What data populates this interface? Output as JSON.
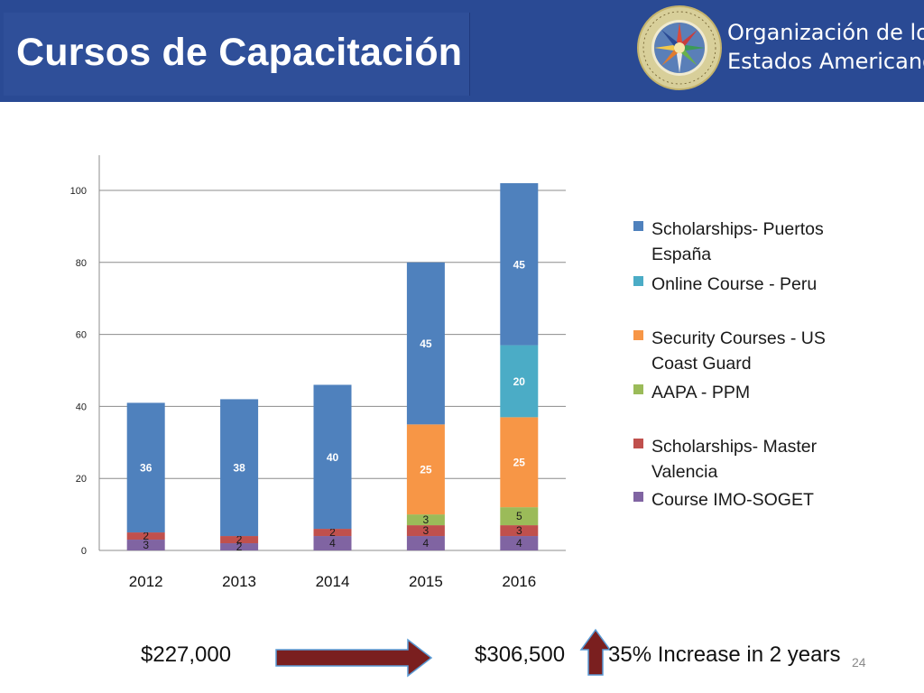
{
  "header": {
    "title": "Cursos de Capacitación",
    "org_line1": "Organización de los",
    "org_line2": "Estados Americanos",
    "logo_text": "ORGANIZACIÓN DE LOS ESTADOS AMERICANOS",
    "bg_color": "#2a4a94"
  },
  "chart_data": {
    "type": "bar",
    "stacked": true,
    "categories": [
      "2012",
      "2013",
      "2014",
      "2015",
      "2016"
    ],
    "series": [
      {
        "name": "Course IMO-SOGET",
        "color": "#8064a2",
        "values": [
          3,
          2,
          4,
          4,
          4
        ]
      },
      {
        "name": "Scholarships- Master Valencia",
        "color": "#c0504d",
        "values": [
          2,
          2,
          2,
          3,
          3
        ]
      },
      {
        "name": "AAPA - PPM",
        "color": "#9bbb59",
        "values": [
          0,
          0,
          0,
          3,
          5
        ]
      },
      {
        "name": "Security Courses - US Coast Guard",
        "color": "#f79646",
        "values": [
          0,
          0,
          0,
          25,
          25
        ]
      },
      {
        "name": "Online Course - Peru",
        "color": "#4bacc6",
        "values": [
          0,
          0,
          0,
          0,
          20
        ]
      },
      {
        "name": "Scholarships- Puertos España",
        "color": "#4f81bd",
        "values": [
          36,
          38,
          40,
          45,
          45
        ]
      }
    ],
    "yticks": [
      0,
      20,
      40,
      60,
      80,
      100
    ],
    "ylim": [
      0,
      110
    ],
    "grid": true,
    "legend_position": "right"
  },
  "legend": {
    "items": [
      {
        "label": "Scholarships- Puertos España",
        "color": "#4f81bd"
      },
      {
        "label": "Online Course - Peru",
        "color": "#4bacc6"
      },
      {
        "label": "Security Courses - US Coast Guard",
        "color": "#f79646"
      },
      {
        "label": "AAPA - PPM",
        "color": "#9bbb59"
      },
      {
        "label": "Scholarships- Master Valencia",
        "color": "#c0504d"
      },
      {
        "label": "Course IMO-SOGET",
        "color": "#8064a2"
      }
    ]
  },
  "footer": {
    "amount_start": "$227,000",
    "amount_end": "$306,500",
    "increase_text": "35% Increase in 2 years",
    "page_number": "24",
    "arrow_color": "#7a1f1f"
  }
}
